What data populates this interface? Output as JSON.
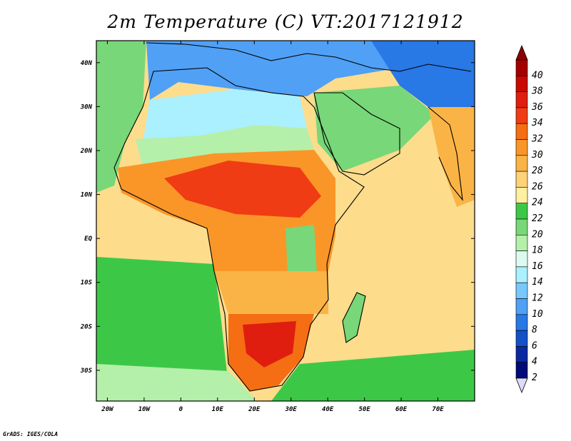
{
  "title": "2m Temperature (C) VT:2017121912",
  "credit": "GrADS: IGES/COLA",
  "map": {
    "variable": "2m Temperature",
    "units": "C",
    "valid_time": "2017121912",
    "lon_range": [
      -23,
      80
    ],
    "lat_range": [
      -37,
      45
    ],
    "lat_ticks": [
      {
        "value": 40,
        "label": "40N"
      },
      {
        "value": 30,
        "label": "30N"
      },
      {
        "value": 20,
        "label": "20N"
      },
      {
        "value": 10,
        "label": "10N"
      },
      {
        "value": 0,
        "label": "EQ"
      },
      {
        "value": -10,
        "label": "10S"
      },
      {
        "value": -20,
        "label": "20S"
      },
      {
        "value": -30,
        "label": "30S"
      }
    ],
    "lon_ticks": [
      {
        "value": -20,
        "label": "20W"
      },
      {
        "value": -10,
        "label": "10W"
      },
      {
        "value": 0,
        "label": "0"
      },
      {
        "value": 10,
        "label": "10E"
      },
      {
        "value": 20,
        "label": "20E"
      },
      {
        "value": 30,
        "label": "30E"
      },
      {
        "value": 40,
        "label": "40E"
      },
      {
        "value": 50,
        "label": "50E"
      },
      {
        "value": 60,
        "label": "60E"
      },
      {
        "value": 70,
        "label": "70E"
      }
    ]
  },
  "colorbar": {
    "levels": [
      {
        "label": "40",
        "color": "#a50000"
      },
      {
        "label": "38",
        "color": "#c80a00"
      },
      {
        "label": "36",
        "color": "#e01e10"
      },
      {
        "label": "34",
        "color": "#f03c14"
      },
      {
        "label": "32",
        "color": "#f56e14"
      },
      {
        "label": "30",
        "color": "#fa9628"
      },
      {
        "label": "28",
        "color": "#fab446"
      },
      {
        "label": "26",
        "color": "#fdd278"
      },
      {
        "label": "24",
        "color": "#fff0a0"
      },
      {
        "label": "22",
        "color": "#3cc846"
      },
      {
        "label": "20",
        "color": "#78d778"
      },
      {
        "label": "18",
        "color": "#b4f0aa"
      },
      {
        "label": "16",
        "color": "#dcfaf0"
      },
      {
        "label": "14",
        "color": "#aaf0ff"
      },
      {
        "label": "12",
        "color": "#78c8ff"
      },
      {
        "label": "10",
        "color": "#50a0f5"
      },
      {
        "label": "8",
        "color": "#2878e6"
      },
      {
        "label": "6",
        "color": "#1450c8"
      },
      {
        "label": "4",
        "color": "#0a28a0"
      },
      {
        "label": "2",
        "color": "#000a78"
      }
    ],
    "top_arrow_color": "#8c0000",
    "bottom_arrow_color": "#dcdcfa"
  },
  "regions": [
    {
      "name": "ocean-subtropical",
      "color": "#fddc8c"
    },
    {
      "name": "north-atlantic-coast",
      "color": "#78d778"
    },
    {
      "name": "south-atlantic",
      "color": "#3cc846"
    },
    {
      "name": "southern-ocean",
      "color": "#b4f0aa"
    },
    {
      "name": "mediterranean-europe",
      "color": "#50a0f5"
    },
    {
      "name": "iran-cold",
      "color": "#2878e6"
    },
    {
      "name": "sahara-north",
      "color": "#aaf0ff"
    },
    {
      "name": "sahara-center",
      "color": "#b4f0aa"
    },
    {
      "name": "arabia",
      "color": "#78d778"
    },
    {
      "name": "india",
      "color": "#fab446"
    },
    {
      "name": "sahel",
      "color": "#fa9628"
    },
    {
      "name": "sahel-hot-core",
      "color": "#f03c14"
    },
    {
      "name": "east-africa-highlands",
      "color": "#78d778"
    },
    {
      "name": "central-africa",
      "color": "#fab446"
    },
    {
      "name": "southern-africa",
      "color": "#f56e14"
    },
    {
      "name": "kalahari-hot",
      "color": "#e01e10"
    },
    {
      "name": "madagascar",
      "color": "#78d778"
    }
  ],
  "palette": {
    "frame": "#000000",
    "background": "#ffffff",
    "coastline": "#000000"
  }
}
